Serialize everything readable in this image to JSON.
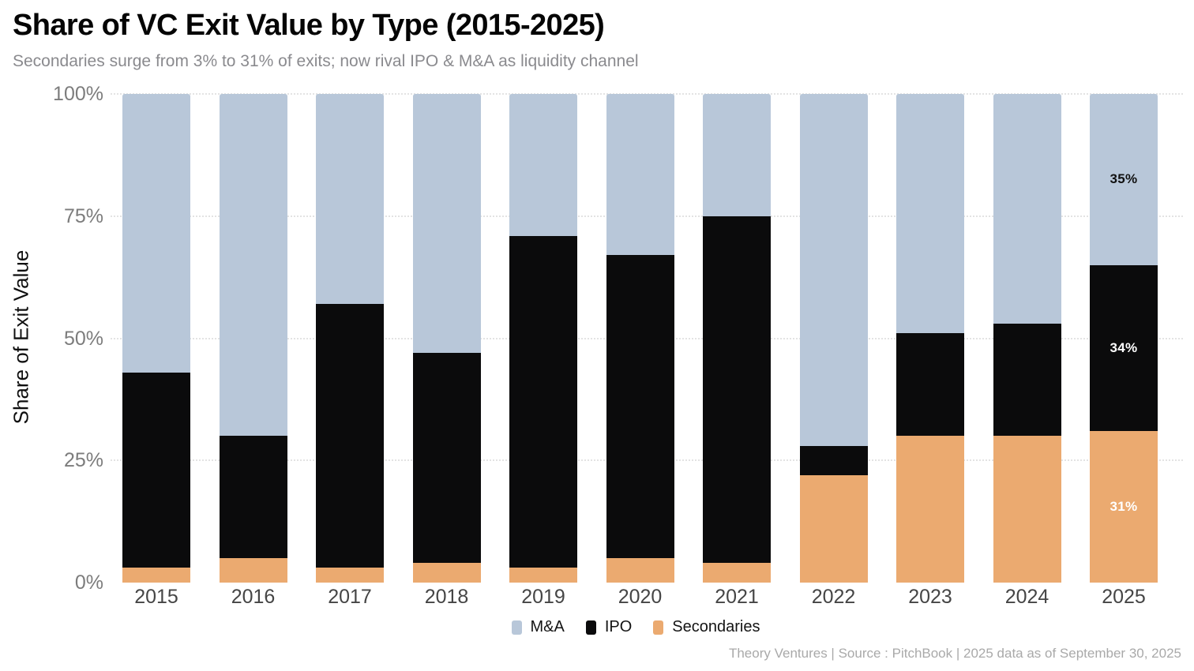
{
  "header": {
    "title": "Share of VC Exit Value by Type (2015-2025)",
    "subtitle": "Secondaries surge from 3% to 31% of exits; now rival IPO & M&A as liquidity channel"
  },
  "footer": {
    "credit": "Theory Ventures | Source : PitchBook | 2025 data as of September 30, 2025"
  },
  "colors": {
    "mna": "#b8c7d9",
    "ipo": "#0b0b0c",
    "secondaries": "#ebaa70",
    "gridline": "#e3e3e3",
    "y_tick_text": "#7c7c7c",
    "x_tick_text": "#454545",
    "subtitle_text": "#8a8a8e",
    "footer_text": "#a9a9a9"
  },
  "chart_data": {
    "type": "bar",
    "stacked": true,
    "title": "Share of VC Exit Value by Type (2015-2025)",
    "subtitle": "Secondaries surge from 3% to 31% of exits; now rival IPO & M&A as liquidity channel",
    "ylabel": "Share of Exit Value",
    "xlabel": "",
    "ylim": [
      0,
      100
    ],
    "grid": "horizontal-dotted",
    "legend_position": "bottom-center",
    "yticks": [
      {
        "value": 0,
        "label": "0%"
      },
      {
        "value": 25,
        "label": "25%"
      },
      {
        "value": 50,
        "label": "50%"
      },
      {
        "value": 75,
        "label": "75%"
      },
      {
        "value": 100,
        "label": "100%"
      }
    ],
    "categories": [
      "2015",
      "2016",
      "2017",
      "2018",
      "2019",
      "2020",
      "2021",
      "2022",
      "2023",
      "2024",
      "2025"
    ],
    "series": [
      {
        "name": "M&A",
        "color_key": "mna",
        "label_color": "#111111",
        "values": [
          57,
          70,
          43,
          53,
          29,
          33,
          25,
          72,
          49,
          47,
          35
        ],
        "bar_labels": [
          "",
          "",
          "",
          "",
          "",
          "",
          "",
          "",
          "",
          "",
          "35%"
        ]
      },
      {
        "name": "IPO",
        "color_key": "ipo",
        "label_color": "#ffffff",
        "values": [
          40,
          25,
          54,
          43,
          68,
          62,
          71,
          6,
          21,
          23,
          34
        ],
        "bar_labels": [
          "",
          "",
          "",
          "",
          "",
          "",
          "",
          "",
          "",
          "",
          "34%"
        ]
      },
      {
        "name": "Secondaries",
        "color_key": "secondaries",
        "label_color": "#ffffff",
        "values": [
          3,
          5,
          3,
          4,
          3,
          5,
          4,
          22,
          30,
          30,
          31
        ],
        "bar_labels": [
          "",
          "",
          "",
          "",
          "",
          "",
          "",
          "",
          "",
          "",
          "31%"
        ]
      }
    ]
  }
}
